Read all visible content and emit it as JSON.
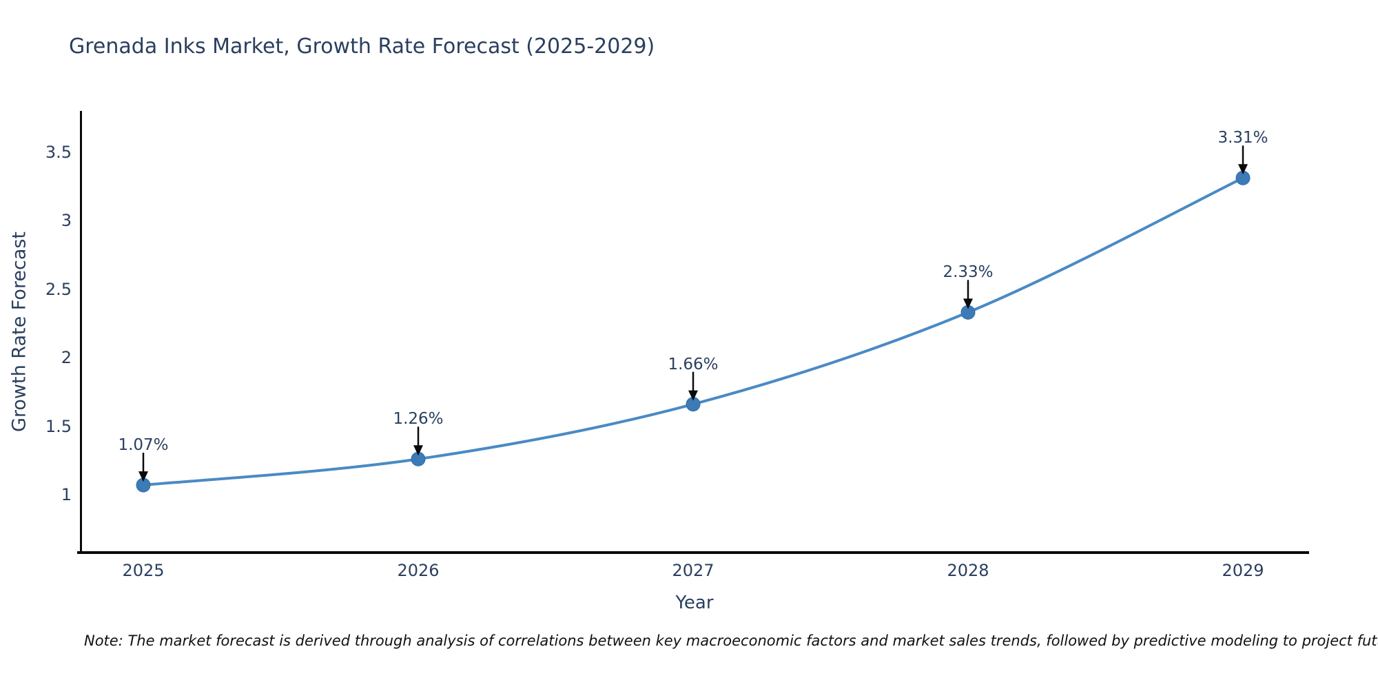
{
  "chart_data": {
    "type": "line",
    "title": "Grenada Inks Market, Growth Rate Forecast (2025-2029)",
    "xlabel": "Year",
    "ylabel": "Growth Rate Forecast",
    "categories": [
      "2025",
      "2026",
      "2027",
      "2028",
      "2029"
    ],
    "values": [
      1.07,
      1.26,
      1.66,
      2.33,
      3.31
    ],
    "point_labels": [
      "1.07%",
      "1.26%",
      "1.66%",
      "2.33%",
      "3.31%"
    ],
    "y_ticks": [
      "1",
      "1.5",
      "2",
      "2.5",
      "3",
      "3.5"
    ],
    "y_tick_values": [
      1,
      1.5,
      2,
      2.5,
      3,
      3.5
    ],
    "ylim": [
      0.58,
      3.8
    ],
    "grid": false,
    "legend_position": "none",
    "line_smoothing": true,
    "colors": {
      "line": "#4a8ac4",
      "marker": "#3c7bb6",
      "marker_edge": "#2f6da8",
      "axis": "#0a0a0a",
      "text": "#2a3f5f",
      "arrow": "#0a0a0a"
    }
  },
  "note": {
    "text": "Note: The market forecast is derived through analysis of correlations between key macroeconomic factors and market sales trends, followed by predictive modeling to project future sales"
  }
}
